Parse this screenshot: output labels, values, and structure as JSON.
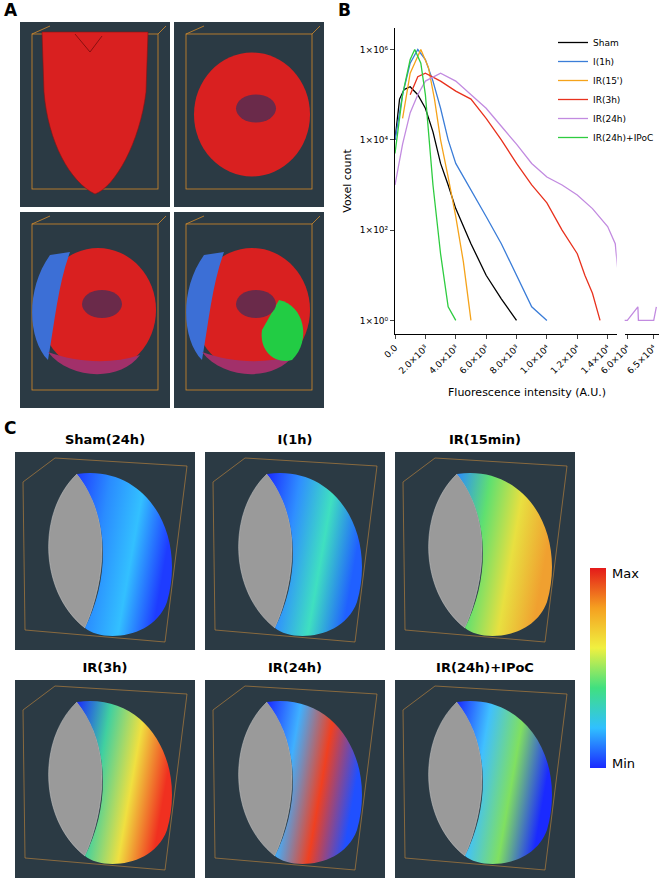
{
  "panel_labels": [
    "A",
    "B",
    "C"
  ],
  "chart_data": {
    "type": "line",
    "log": "y",
    "grid": false,
    "legend": "top-right",
    "x_label": "Fluorescence intensity (A.U.)",
    "y_label": "Voxel count",
    "xlim": [
      0,
      14600
    ],
    "xticks": [
      {
        "value": 0,
        "label": "0.0"
      },
      {
        "value": 2000,
        "label": "2.0×10³"
      },
      {
        "value": 4000,
        "label": "4.0×10³"
      },
      {
        "value": 6000,
        "label": "6.0×10³"
      },
      {
        "value": 8000,
        "label": "8.0×10³"
      },
      {
        "value": 10000,
        "label": "1.0×10⁴"
      },
      {
        "value": 12000,
        "label": "1.2×10⁴"
      },
      {
        "value": 14000,
        "label": "1.4×10⁴"
      }
    ],
    "x2lim": [
      59500,
      66000
    ],
    "x2ticks": [
      {
        "value": 60000,
        "label": "6.0×10⁴"
      },
      {
        "value": 65000,
        "label": "6.5×10⁴"
      }
    ],
    "ylim": [
      0.5,
      3000000
    ],
    "yticks": [
      {
        "value": 1,
        "label": "1×10⁰"
      },
      {
        "value": 100,
        "label": "1×10²"
      },
      {
        "value": 10000,
        "label": "1×10⁴"
      },
      {
        "value": 1000000,
        "label": "1×10⁶"
      }
    ],
    "series": [
      {
        "name": "Sham",
        "color": "#000000",
        "x": [
          0,
          300,
          600,
          1000,
          1500,
          2000,
          2500,
          3000,
          3500,
          4000,
          5000,
          6000,
          7000,
          8000
        ],
        "values": [
          10000,
          80000,
          130000,
          150000,
          100000,
          50000,
          15000,
          3000,
          1000,
          300,
          50,
          10,
          3,
          1
        ]
      },
      {
        "name": "I(1h)",
        "color": "#3b7dd8",
        "x": [
          0,
          500,
          1000,
          1500,
          2000,
          2500,
          3000,
          3500,
          4000,
          5000,
          6000,
          7000,
          8000,
          9000,
          10000
        ],
        "values": [
          10000,
          100000,
          500000,
          1000000,
          600000,
          200000,
          50000,
          10000,
          3000,
          800,
          200,
          50,
          10,
          2,
          1
        ]
      },
      {
        "name": "IR(15')",
        "color": "#f5a31a",
        "x": [
          500,
          1000,
          1700,
          2200,
          2600,
          3000,
          3500,
          4000,
          4500,
          5000
        ],
        "values": [
          30000,
          300000,
          1000000,
          400000,
          80000,
          10000,
          1500,
          200,
          20,
          1
        ]
      },
      {
        "name": "IR(3h)",
        "color": "#e8321e",
        "x": [
          1000,
          1500,
          2000,
          3000,
          4000,
          5000,
          6000,
          7000,
          8000,
          9000,
          10000,
          11000,
          12000,
          12500,
          13000,
          13500
        ],
        "values": [
          100000,
          250000,
          300000,
          200000,
          120000,
          80000,
          30000,
          10000,
          3000,
          1000,
          400,
          100,
          30,
          10,
          4,
          1
        ]
      },
      {
        "name": "IR(24h)",
        "color": "#c28be0",
        "x": [
          0,
          500,
          1000,
          1500,
          2000,
          3000,
          4000,
          5000,
          6000,
          7000,
          8000,
          9000,
          10000,
          11000,
          12000,
          13000,
          14000,
          14500,
          15000,
          60000,
          62000,
          62100,
          65000,
          65500
        ],
        "values": [
          1000,
          8000,
          40000,
          100000,
          200000,
          300000,
          200000,
          100000,
          50000,
          20000,
          8000,
          3000,
          1500,
          1000,
          600,
          300,
          120,
          50,
          1,
          1,
          2,
          1,
          1,
          2
        ]
      },
      {
        "name": "IR(24h)+IPoC",
        "color": "#2ecc40",
        "x": [
          0,
          500,
          1000,
          1300,
          1700,
          2000,
          2500,
          3000,
          3500,
          4000
        ],
        "values": [
          5000,
          100000,
          600000,
          1000000,
          500000,
          100000,
          1000,
          30,
          2,
          1
        ]
      }
    ]
  },
  "heatmap_panel": {
    "titles": [
      "Sham(24h)",
      "I(1h)",
      "IR(15min)",
      "IR(3h)",
      "IR(24h)",
      "IR(24h)+IPoC"
    ],
    "colorbar": {
      "max_label": "Max",
      "min_label": "Min"
    }
  }
}
